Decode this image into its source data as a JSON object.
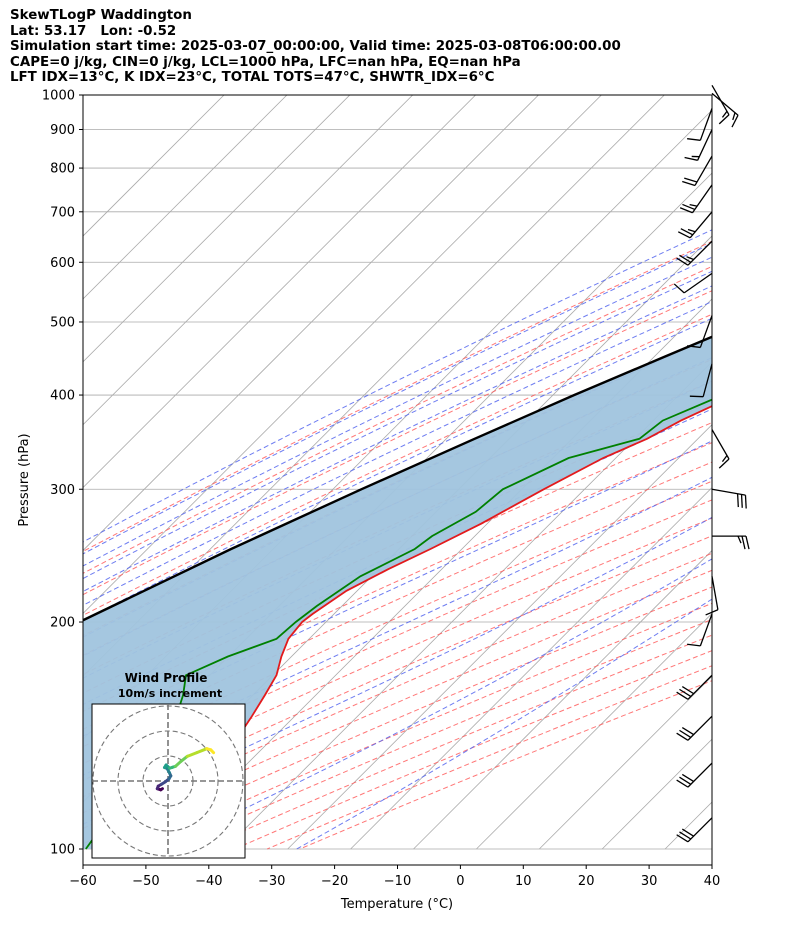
{
  "header": {
    "line1": "SkewTLogP Waddington",
    "line2": "Lat: 53.17   Lon: -0.52",
    "line3": "Simulation start time: 2025-03-07_00:00:00, Valid time: 2025-03-08T06:00:00.00",
    "line4": "CAPE=0 j/kg, CIN=0 j/kg, LCL=1000 hPa, LFC=nan hPa, EQ=nan hPa",
    "line5": "LFT IDX=13°C, K IDX=23°C, TOTAL TOTS=47°C, SHWTR_IDX=6°C"
  },
  "colors": {
    "temperature": "#e31a1c",
    "dewpoint": "#008000",
    "parcel": "#000000",
    "shade": "#a0c4de",
    "dry_adiabat": "#ff5555",
    "moist_adiabat": "#5566ee",
    "mixing_ratio": "#9955cc",
    "isotherm": "#aaaaaa",
    "isobar": "#aaaaaa"
  },
  "chart_data": [
    {
      "type": "line",
      "chart": "skew-t-log-p",
      "xlabel": "Temperature (°C)",
      "ylabel": "Pressure (hPa)",
      "xlim": [
        -60,
        40
      ],
      "ylim": [
        1050,
        100
      ],
      "y_scale": "log",
      "skew": true,
      "grid": true,
      "x_ticks": [
        -60,
        -50,
        -40,
        -30,
        -20,
        -10,
        0,
        10,
        20,
        30,
        40
      ],
      "x_tick_labels": [
        "−60",
        "−50",
        "−40",
        "−30",
        "−20",
        "−10",
        "0",
        "10",
        "20",
        "30",
        "40"
      ],
      "y_ticks": [
        1000,
        900,
        800,
        700,
        600,
        500,
        400,
        300,
        200,
        100
      ],
      "y_tick_labels": [
        "1000",
        "900",
        "800",
        "700",
        "600",
        "500",
        "400",
        "300",
        "200",
        "100"
      ],
      "series": [
        {
          "role": "temperature",
          "p": [
            1000,
            990,
            970,
            950,
            925,
            900,
            850,
            800,
            750,
            700,
            650,
            600,
            550,
            500,
            450,
            400,
            370,
            350,
            330,
            300,
            270,
            250,
            235,
            220,
            205,
            200,
            190,
            180,
            170,
            160,
            150,
            140,
            130,
            120,
            110,
            100
          ],
          "T": [
            5.8,
            10,
            12.6,
            11.8,
            10.4,
            8.9,
            5.7,
            2.2,
            -1.4,
            -4.9,
            -8.2,
            -11.5,
            -15,
            -19.3,
            -24.5,
            -30.9,
            -35.6,
            -38.1,
            -42,
            -46.5,
            -51,
            -55,
            -58.5,
            -61.7,
            -63.4,
            -63.8,
            -63.3,
            -61.6,
            -59.4,
            -58.1,
            -56.8,
            -55.6,
            -54.7,
            -55.2,
            -55.9,
            -56.3
          ]
        },
        {
          "role": "dewpoint",
          "p": [
            1000,
            980,
            950,
            920,
            900,
            870,
            850,
            830,
            800,
            780,
            750,
            700,
            650,
            600,
            550,
            500,
            450,
            400,
            370,
            350,
            330,
            300,
            280,
            260,
            250,
            230,
            210,
            200,
            190,
            180,
            170,
            160,
            150,
            140,
            130,
            120,
            110,
            100
          ],
          "Td": [
            5.8,
            7.2,
            7.8,
            7,
            5,
            2.9,
            2.1,
            2.4,
            3,
            5.1,
            4.2,
            2.5,
            -0.7,
            -5.3,
            -11.9,
            -18.7,
            -25.7,
            -33,
            -38.5,
            -39.3,
            -47.5,
            -53,
            -53.7,
            -56.8,
            -57.5,
            -61.8,
            -64,
            -64.8,
            -65.2,
            -70.1,
            -73.8,
            -71.1,
            -68.8,
            -67,
            -65.3,
            -64.4,
            -63.5,
            -62.1
          ]
        },
        {
          "role": "parcel",
          "p": [
            1000,
            950,
            900,
            850,
            800,
            750,
            700,
            650,
            600,
            550,
            500,
            450,
            400,
            350,
            300,
            250,
            200,
            150,
            100
          ],
          "T": [
            5.8,
            2.9,
            -0.3,
            -3.8,
            -7.7,
            -11.9,
            -16.5,
            -21.8,
            -27.5,
            -33.9,
            -40.7,
            -48.3,
            -56.6,
            -65.5,
            -75.5,
            -86.7,
            -99.2,
            -114.7,
            -134.8
          ]
        }
      ],
      "wind_barbs": [
        {
          "p": 1030,
          "dir_deg": 150,
          "speed_kt": 15
        },
        {
          "p": 1005,
          "dir_deg": 130,
          "speed_kt": 15
        },
        {
          "p": 960,
          "dir_deg": 200,
          "speed_kt": 10
        },
        {
          "p": 900,
          "dir_deg": 205,
          "speed_kt": 15
        },
        {
          "p": 830,
          "dir_deg": 210,
          "speed_kt": 20
        },
        {
          "p": 760,
          "dir_deg": 215,
          "speed_kt": 25
        },
        {
          "p": 700,
          "dir_deg": 220,
          "speed_kt": 25
        },
        {
          "p": 640,
          "dir_deg": 225,
          "speed_kt": 25
        },
        {
          "p": 580,
          "dir_deg": 235,
          "speed_kt": 10
        },
        {
          "p": 510,
          "dir_deg": 200,
          "speed_kt": 10
        },
        {
          "p": 440,
          "dir_deg": 195,
          "speed_kt": 10
        },
        {
          "p": 360,
          "dir_deg": 150,
          "speed_kt": 15
        },
        {
          "p": 300,
          "dir_deg": 100,
          "speed_kt": 30
        },
        {
          "p": 260,
          "dir_deg": 90,
          "speed_kt": 25
        },
        {
          "p": 230,
          "dir_deg": 170,
          "speed_kt": 10
        },
        {
          "p": 205,
          "dir_deg": 200,
          "speed_kt": 10
        },
        {
          "p": 170,
          "dir_deg": 225,
          "speed_kt": 30
        },
        {
          "p": 150,
          "dir_deg": 225,
          "speed_kt": 30
        },
        {
          "p": 130,
          "dir_deg": 225,
          "speed_kt": 30
        },
        {
          "p": 110,
          "dir_deg": 225,
          "speed_kt": 30
        }
      ]
    },
    {
      "type": "line",
      "chart": "hodograph",
      "title": "Wind Profile",
      "subtitle": "10m/s increment",
      "ring_step_ms": 10,
      "rings": 3,
      "u": [
        -2.4,
        -3.1,
        -4.6,
        -4.2,
        -2.8,
        -1.1,
        0.4,
        1.2,
        0.6,
        -0.4,
        -1.5,
        -0.8,
        0.7,
        1.9,
        3.2,
        5.4,
        8.3,
        12.4,
        16.7,
        18.4,
        19.6
      ],
      "v": [
        -3.3,
        -3.8,
        -3.3,
        -2.2,
        -1.4,
        -0.3,
        0.9,
        2.2,
        3.6,
        5.4,
        5.8,
        6.9,
        5.5,
        5.9,
        6.3,
        8.3,
        10.6,
        12.2,
        13.9,
        13.4,
        12.2
      ]
    }
  ]
}
